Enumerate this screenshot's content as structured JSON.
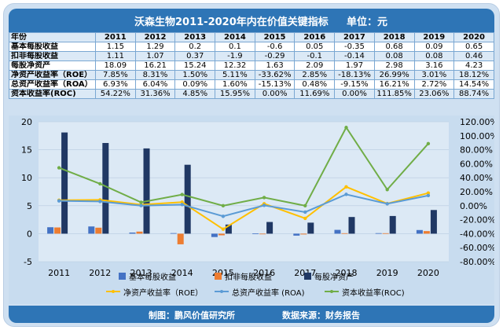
{
  "title": "沃森生物2011-2020年内在价值关键指标",
  "unit": "单位：元",
  "table": {
    "header_label": "年份",
    "years": [
      "2011",
      "2012",
      "2013",
      "2014",
      "2015",
      "2016",
      "2017",
      "2018",
      "2019",
      "2020"
    ],
    "rows": [
      {
        "label": "基本每股收益",
        "values": [
          "1.15",
          "1.29",
          "0.2",
          "0.1",
          "-0.6",
          "0.05",
          "-0.35",
          "0.68",
          "0.09",
          "0.65"
        ]
      },
      {
        "label": "扣非每股收益",
        "values": [
          "1.11",
          "1.07",
          "0.37",
          "-1.9",
          "-0.29",
          "-0.1",
          "-0.14",
          "0.08",
          "0.08",
          "0.46"
        ]
      },
      {
        "label": "每股净资产",
        "values": [
          "18.09",
          "16.21",
          "15.24",
          "12.32",
          "1.63",
          "2.09",
          "1.97",
          "2.98",
          "3.16",
          "4.23"
        ]
      },
      {
        "label": "净资产收益率（ROE）",
        "values": [
          "7.85%",
          "8.31%",
          "1.50%",
          "5.11%",
          "-33.62%",
          "2.85%",
          "-18.13%",
          "26.99%",
          "3.01%",
          "18.12%"
        ]
      },
      {
        "label": "总资产收益率（ROA）",
        "values": [
          "6.93%",
          "6.04%",
          "0.09%",
          "1.60%",
          "-15.13%",
          "0.48%",
          "-9.15%",
          "16.21%",
          "2.72%",
          "14.54%"
        ]
      },
      {
        "label": "资本收益率(ROC)",
        "values": [
          "54.22%",
          "31.36%",
          "4.85%",
          "15.95%",
          "0.00%",
          "11.69%",
          "0.00%",
          "111.85%",
          "23.06%",
          "88.74%"
        ]
      }
    ]
  },
  "chart_data": {
    "type": "bar+line",
    "categories": [
      "2011",
      "2012",
      "2013",
      "2014",
      "2015",
      "2016",
      "2017",
      "2018",
      "2019",
      "2020"
    ],
    "bar_series": [
      {
        "name": "基本每股收益",
        "color": "#4472c4",
        "values": [
          1.15,
          1.29,
          0.2,
          0.1,
          -0.6,
          0.05,
          -0.35,
          0.68,
          0.09,
          0.65
        ]
      },
      {
        "name": "扣非每股收益",
        "color": "#ed7d31",
        "values": [
          1.11,
          1.07,
          0.37,
          -1.9,
          -0.29,
          -0.1,
          -0.14,
          0.08,
          0.08,
          0.46
        ]
      },
      {
        "name": "每股净资产",
        "color": "#203864",
        "values": [
          18.09,
          16.21,
          15.24,
          12.32,
          1.63,
          2.09,
          1.97,
          2.98,
          3.16,
          4.23
        ]
      }
    ],
    "line_series": [
      {
        "name": "净资产收益率（ROE）",
        "color": "#ffc000",
        "values": [
          7.85,
          8.31,
          1.5,
          5.11,
          -33.62,
          2.85,
          -18.13,
          26.99,
          3.01,
          18.12
        ]
      },
      {
        "name": "总资产收益率 (ROA)",
        "color": "#5b9bd5",
        "values": [
          6.93,
          6.04,
          0.09,
          1.6,
          -15.13,
          0.48,
          -9.15,
          16.21,
          2.72,
          14.54
        ]
      },
      {
        "name": "资本收益率(ROC)",
        "color": "#70ad47",
        "values": [
          54.22,
          31.36,
          4.85,
          15.95,
          0.0,
          11.69,
          0.0,
          111.85,
          23.06,
          88.74
        ]
      }
    ],
    "y_left": {
      "min": -5,
      "max": 20,
      "ticks": [
        20,
        15,
        10,
        5,
        0,
        -5
      ]
    },
    "y_right": {
      "min": -80,
      "max": 120,
      "ticks": [
        "120.00%",
        "100.00%",
        "80.00%",
        "60.00%",
        "40.00%",
        "20.00%",
        "0.00%",
        "-20.00%",
        "-40.00%",
        "-60.00%",
        "-80.00%"
      ]
    }
  },
  "footer": {
    "made_by": "制图：鹏风价值研究所",
    "source": "数据来源：财务报告"
  }
}
